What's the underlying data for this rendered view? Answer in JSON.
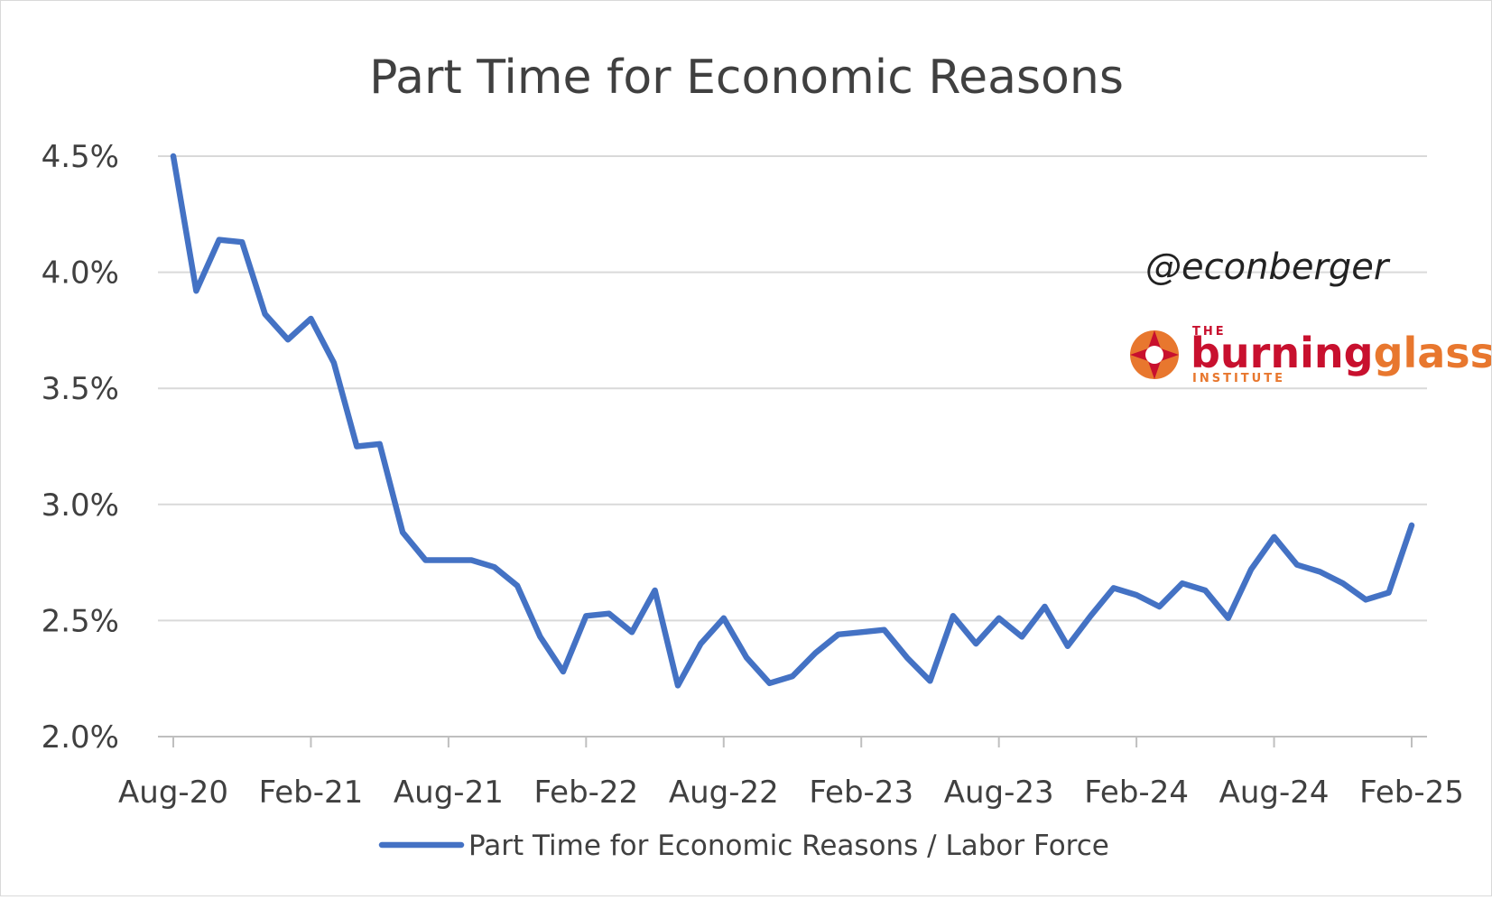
{
  "chart_data": {
    "type": "line",
    "title": "Part Time for Economic Reasons",
    "ylim": [
      2.0,
      4.5
    ],
    "y_ticks": [
      "2.0%",
      "2.5%",
      "3.0%",
      "3.5%",
      "4.0%",
      "4.5%"
    ],
    "y_tick_values": [
      2.0,
      2.5,
      3.0,
      3.5,
      4.0,
      4.5
    ],
    "x_tick_labels": [
      "Aug-20",
      "Feb-21",
      "Aug-21",
      "Feb-22",
      "Aug-22",
      "Feb-23",
      "Aug-23",
      "Feb-24",
      "Aug-24",
      "Feb-25"
    ],
    "grid": true,
    "legend_position": "bottom",
    "series": [
      {
        "name": "Part Time for Economic Reasons / Labor Force",
        "color": "#4472C4",
        "start_month": "Aug-20",
        "values": [
          4.5,
          3.92,
          4.14,
          4.13,
          3.82,
          3.71,
          3.8,
          3.61,
          3.25,
          3.26,
          2.88,
          2.76,
          2.76,
          2.76,
          2.73,
          2.65,
          2.43,
          2.28,
          2.52,
          2.53,
          2.45,
          2.63,
          2.22,
          2.4,
          2.51,
          2.34,
          2.23,
          2.26,
          2.36,
          2.44,
          2.45,
          2.46,
          2.34,
          2.24,
          2.52,
          2.4,
          2.51,
          2.43,
          2.56,
          2.39,
          2.52,
          2.64,
          2.61,
          2.56,
          2.66,
          2.63,
          2.51,
          2.72,
          2.86,
          2.74,
          2.71,
          2.66,
          2.59,
          2.62,
          2.91
        ]
      }
    ]
  },
  "credit": "@econberger",
  "logo": {
    "pre": "THE",
    "word1": "burning",
    "word2": "glass",
    "sub": "INSTITUTE"
  }
}
